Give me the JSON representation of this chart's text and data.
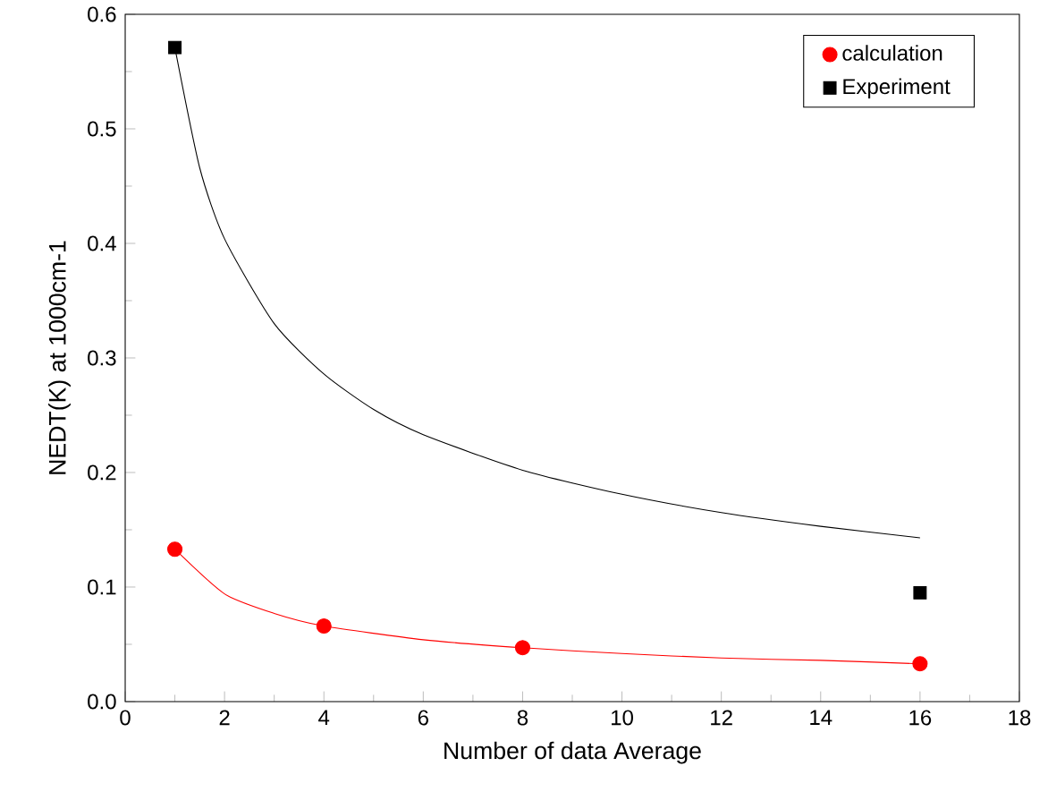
{
  "chart_data": {
    "type": "scatter",
    "xlabel": "Number of data Average",
    "ylabel": "NEDT(K) at 1000cm-1",
    "xlim": [
      0,
      18
    ],
    "ylim": [
      0,
      0.6
    ],
    "xticks": [
      0,
      2,
      4,
      6,
      8,
      10,
      12,
      14,
      16,
      18
    ],
    "yticks": [
      {
        "value": 0,
        "label": "0.0"
      },
      0.1,
      0.2,
      0.3,
      0.4,
      0.5,
      0.6
    ],
    "legend": "top right",
    "grid": false,
    "series": [
      {
        "type": "line",
        "color": "#000000",
        "x": [
          1,
          1.5,
          2,
          3,
          4,
          5,
          6,
          8,
          10,
          12,
          14,
          16
        ],
        "values": [
          0.571,
          0.466,
          0.404,
          0.33,
          0.286,
          0.255,
          0.233,
          0.202,
          0.181,
          0.165,
          0.153,
          0.143
        ]
      },
      {
        "type": "line",
        "color": "#ff0000",
        "x": [
          1,
          2,
          3,
          4,
          6,
          8,
          10,
          12,
          14,
          16
        ],
        "values": [
          0.133,
          0.094,
          0.077,
          0.066,
          0.054,
          0.047,
          0.042,
          0.038,
          0.036,
          0.033
        ]
      },
      {
        "name": "calculation",
        "marker": "circle",
        "color": "#ff0000",
        "x": [
          1,
          4,
          8,
          16
        ],
        "values": [
          0.133,
          0.066,
          0.047,
          0.033
        ]
      },
      {
        "name": "Experiment",
        "marker": "square",
        "color": "#000000",
        "x": [
          1,
          16
        ],
        "values": [
          0.571,
          0.095
        ]
      }
    ]
  }
}
